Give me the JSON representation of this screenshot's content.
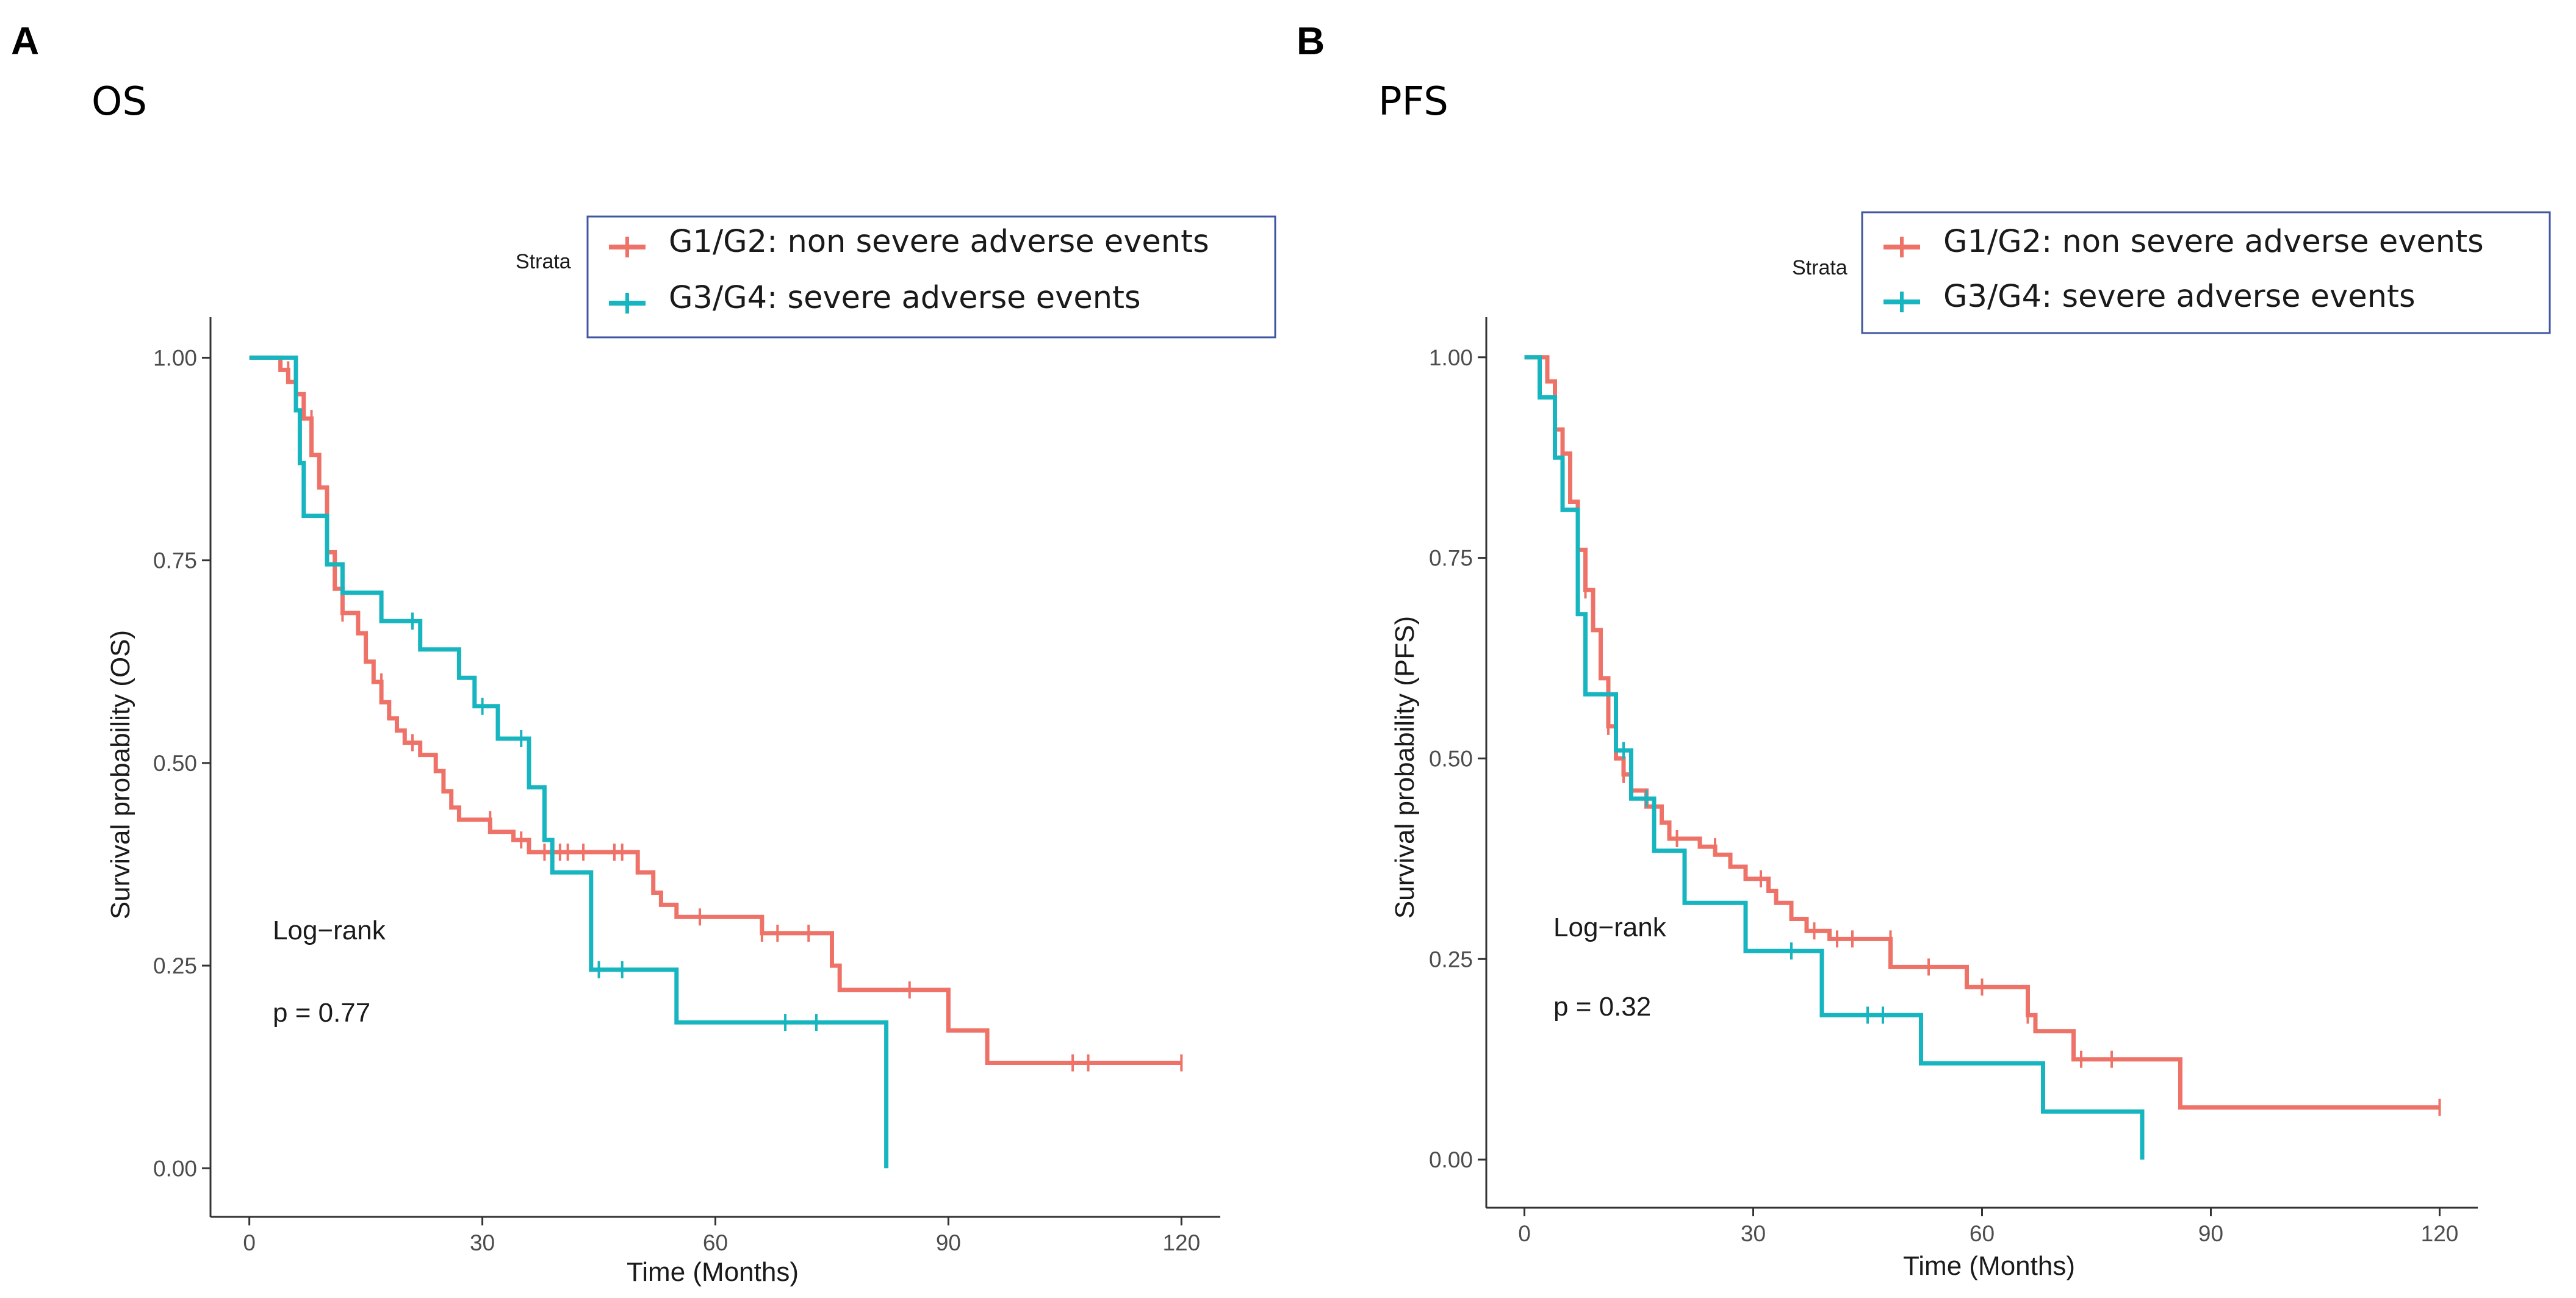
{
  "colors": {
    "group1": "#ee7267",
    "group2": "#17b5bf",
    "legend_border": "#3f57a0",
    "axis": "#333333"
  },
  "chart_data": [
    {
      "type": "line",
      "panel_label": "A",
      "subtitle": "OS",
      "xlabel": "Time (Months)",
      "ylabel": "Survival probability (OS)",
      "xlim": [
        -5,
        125
      ],
      "ylim": [
        -0.06,
        1.05
      ],
      "xticks": [
        0,
        30,
        60,
        90,
        120
      ],
      "xtick_labels": [
        "0",
        "30",
        "60",
        "90",
        "120"
      ],
      "yticks": [
        0,
        0.25,
        0.5,
        0.75,
        1.0
      ],
      "ytick_labels": [
        "0.00",
        "0.25",
        "0.50",
        "0.75",
        "1.00"
      ],
      "legend_title": "Strata",
      "legend_position": "top-right",
      "annotations": [
        "Log−rank",
        "p = 0.77"
      ],
      "series": [
        {
          "name": "G1/G2: non severe adverse events",
          "steps": [
            [
              0,
              1.0
            ],
            [
              4,
              1.0
            ],
            [
              4,
              0.985
            ],
            [
              5,
              0.985
            ],
            [
              5,
              0.97
            ],
            [
              6,
              0.97
            ],
            [
              6,
              0.955
            ],
            [
              7,
              0.955
            ],
            [
              7,
              0.925
            ],
            [
              8,
              0.925
            ],
            [
              8,
              0.88
            ],
            [
              9,
              0.88
            ],
            [
              9,
              0.84
            ],
            [
              10,
              0.84
            ],
            [
              10,
              0.76
            ],
            [
              11,
              0.76
            ],
            [
              11,
              0.715
            ],
            [
              12,
              0.715
            ],
            [
              12,
              0.685
            ],
            [
              14,
              0.685
            ],
            [
              14,
              0.66
            ],
            [
              15,
              0.66
            ],
            [
              15,
              0.625
            ],
            [
              16,
              0.625
            ],
            [
              16,
              0.6
            ],
            [
              17,
              0.6
            ],
            [
              17,
              0.575
            ],
            [
              18,
              0.575
            ],
            [
              18,
              0.555
            ],
            [
              19,
              0.555
            ],
            [
              19,
              0.54
            ],
            [
              20,
              0.54
            ],
            [
              20,
              0.525
            ],
            [
              22,
              0.525
            ],
            [
              22,
              0.51
            ],
            [
              24,
              0.51
            ],
            [
              24,
              0.49
            ],
            [
              25,
              0.49
            ],
            [
              25,
              0.465
            ],
            [
              26,
              0.465
            ],
            [
              26,
              0.445
            ],
            [
              27,
              0.445
            ],
            [
              27,
              0.43
            ],
            [
              31,
              0.43
            ],
            [
              31,
              0.415
            ],
            [
              34,
              0.415
            ],
            [
              34,
              0.405
            ],
            [
              36,
              0.405
            ],
            [
              36,
              0.39
            ],
            [
              50,
              0.39
            ],
            [
              50,
              0.365
            ],
            [
              52,
              0.365
            ],
            [
              52,
              0.34
            ],
            [
              53,
              0.34
            ],
            [
              53,
              0.325
            ],
            [
              55,
              0.325
            ],
            [
              55,
              0.31
            ],
            [
              66,
              0.31
            ],
            [
              66,
              0.29
            ],
            [
              75,
              0.29
            ],
            [
              75,
              0.25
            ],
            [
              76,
              0.25
            ],
            [
              76,
              0.22
            ],
            [
              90,
              0.22
            ],
            [
              90,
              0.17
            ],
            [
              95,
              0.17
            ],
            [
              95,
              0.13
            ],
            [
              120,
              0.13
            ]
          ],
          "censors": [
            [
              5,
              0.985
            ],
            [
              8,
              0.925
            ],
            [
              10,
              0.76
            ],
            [
              12,
              0.685
            ],
            [
              17,
              0.6
            ],
            [
              21,
              0.525
            ],
            [
              31,
              0.43
            ],
            [
              35,
              0.405
            ],
            [
              38,
              0.39
            ],
            [
              40,
              0.39
            ],
            [
              41,
              0.39
            ],
            [
              43,
              0.39
            ],
            [
              47,
              0.39
            ],
            [
              48,
              0.39
            ],
            [
              58,
              0.31
            ],
            [
              66,
              0.29
            ],
            [
              68,
              0.29
            ],
            [
              72,
              0.29
            ],
            [
              85,
              0.22
            ],
            [
              106,
              0.13
            ],
            [
              108,
              0.13
            ],
            [
              120,
              0.13
            ]
          ]
        },
        {
          "name": "G3/G4: severe adverse events",
          "steps": [
            [
              0,
              1.0
            ],
            [
              6,
              1.0
            ],
            [
              6,
              0.935
            ],
            [
              6.5,
              0.935
            ],
            [
              6.5,
              0.87
            ],
            [
              7,
              0.87
            ],
            [
              7,
              0.805
            ],
            [
              10,
              0.805
            ],
            [
              10,
              0.745
            ],
            [
              12,
              0.745
            ],
            [
              12,
              0.71
            ],
            [
              17,
              0.71
            ],
            [
              17,
              0.675
            ],
            [
              22,
              0.675
            ],
            [
              22,
              0.64
            ],
            [
              27,
              0.64
            ],
            [
              27,
              0.605
            ],
            [
              29,
              0.605
            ],
            [
              29,
              0.57
            ],
            [
              32,
              0.57
            ],
            [
              32,
              0.53
            ],
            [
              36,
              0.53
            ],
            [
              36,
              0.47
            ],
            [
              38,
              0.47
            ],
            [
              38,
              0.405
            ],
            [
              39,
              0.405
            ],
            [
              39,
              0.365
            ],
            [
              44,
              0.365
            ],
            [
              44,
              0.245
            ],
            [
              55,
              0.245
            ],
            [
              55,
              0.18
            ],
            [
              82,
              0.18
            ],
            [
              82,
              0.0
            ]
          ],
          "censors": [
            [
              21,
              0.675
            ],
            [
              30,
              0.57
            ],
            [
              35,
              0.53
            ],
            [
              45,
              0.245
            ],
            [
              48,
              0.245
            ],
            [
              69,
              0.18
            ],
            [
              73,
              0.18
            ]
          ]
        }
      ]
    },
    {
      "type": "line",
      "panel_label": "B",
      "subtitle": "PFS",
      "xlabel": "Time (Months)",
      "ylabel": "Survival probability (PFS)",
      "xlim": [
        -5,
        125
      ],
      "ylim": [
        -0.06,
        1.05
      ],
      "xticks": [
        0,
        30,
        60,
        90,
        120
      ],
      "xtick_labels": [
        "0",
        "30",
        "60",
        "90",
        "120"
      ],
      "yticks": [
        0,
        0.25,
        0.5,
        0.75,
        1.0
      ],
      "ytick_labels": [
        "0.00",
        "0.25",
        "0.50",
        "0.75",
        "1.00"
      ],
      "legend_title": "Strata",
      "legend_position": "top-right",
      "annotations": [
        "Log−rank",
        "p = 0.32"
      ],
      "series": [
        {
          "name": "G1/G2: non severe adverse events",
          "steps": [
            [
              0,
              1.0
            ],
            [
              3,
              1.0
            ],
            [
              3,
              0.97
            ],
            [
              4,
              0.97
            ],
            [
              4,
              0.91
            ],
            [
              5,
              0.91
            ],
            [
              5,
              0.88
            ],
            [
              6,
              0.88
            ],
            [
              6,
              0.82
            ],
            [
              7,
              0.82
            ],
            [
              7,
              0.76
            ],
            [
              8,
              0.76
            ],
            [
              8,
              0.71
            ],
            [
              9,
              0.71
            ],
            [
              9,
              0.66
            ],
            [
              10,
              0.66
            ],
            [
              10,
              0.6
            ],
            [
              11,
              0.6
            ],
            [
              11,
              0.54
            ],
            [
              12,
              0.54
            ],
            [
              12,
              0.5
            ],
            [
              13,
              0.5
            ],
            [
              13,
              0.48
            ],
            [
              14,
              0.48
            ],
            [
              14,
              0.46
            ],
            [
              16,
              0.46
            ],
            [
              16,
              0.44
            ],
            [
              18,
              0.44
            ],
            [
              18,
              0.42
            ],
            [
              19,
              0.42
            ],
            [
              19,
              0.4
            ],
            [
              23,
              0.4
            ],
            [
              23,
              0.39
            ],
            [
              25,
              0.39
            ],
            [
              25,
              0.38
            ],
            [
              27,
              0.38
            ],
            [
              27,
              0.365
            ],
            [
              29,
              0.365
            ],
            [
              29,
              0.35
            ],
            [
              32,
              0.35
            ],
            [
              32,
              0.335
            ],
            [
              33,
              0.335
            ],
            [
              33,
              0.32
            ],
            [
              35,
              0.32
            ],
            [
              35,
              0.3
            ],
            [
              37,
              0.3
            ],
            [
              37,
              0.285
            ],
            [
              40,
              0.285
            ],
            [
              40,
              0.275
            ],
            [
              48,
              0.275
            ],
            [
              48,
              0.24
            ],
            [
              58,
              0.24
            ],
            [
              58,
              0.215
            ],
            [
              66,
              0.215
            ],
            [
              66,
              0.18
            ],
            [
              67,
              0.18
            ],
            [
              67,
              0.16
            ],
            [
              72,
              0.16
            ],
            [
              72,
              0.125
            ],
            [
              86,
              0.125
            ],
            [
              86,
              0.065
            ],
            [
              120,
              0.065
            ]
          ],
          "censors": [
            [
              8,
              0.71
            ],
            [
              11,
              0.54
            ],
            [
              13,
              0.48
            ],
            [
              17,
              0.44
            ],
            [
              20,
              0.4
            ],
            [
              25,
              0.39
            ],
            [
              31,
              0.35
            ],
            [
              38,
              0.285
            ],
            [
              41,
              0.275
            ],
            [
              43,
              0.275
            ],
            [
              48,
              0.275
            ],
            [
              53,
              0.24
            ],
            [
              60,
              0.215
            ],
            [
              66,
              0.18
            ],
            [
              73,
              0.125
            ],
            [
              77,
              0.125
            ],
            [
              120,
              0.065
            ]
          ]
        },
        {
          "name": "G3/G4: severe adverse events",
          "steps": [
            [
              0,
              1.0
            ],
            [
              2,
              1.0
            ],
            [
              2,
              0.95
            ],
            [
              4,
              0.95
            ],
            [
              4,
              0.875
            ],
            [
              5,
              0.875
            ],
            [
              5,
              0.81
            ],
            [
              7,
              0.81
            ],
            [
              7,
              0.68
            ],
            [
              8,
              0.68
            ],
            [
              8,
              0.58
            ],
            [
              12,
              0.58
            ],
            [
              12,
              0.51
            ],
            [
              14,
              0.51
            ],
            [
              14,
              0.45
            ],
            [
              17,
              0.45
            ],
            [
              17,
              0.385
            ],
            [
              21,
              0.385
            ],
            [
              21,
              0.32
            ],
            [
              29,
              0.32
            ],
            [
              29,
              0.26
            ],
            [
              39,
              0.26
            ],
            [
              39,
              0.18
            ],
            [
              52,
              0.18
            ],
            [
              52,
              0.12
            ],
            [
              68,
              0.12
            ],
            [
              68,
              0.06
            ],
            [
              81,
              0.06
            ],
            [
              81,
              0.0
            ]
          ],
          "censors": [
            [
              13,
              0.51
            ],
            [
              16,
              0.45
            ],
            [
              35,
              0.26
            ],
            [
              45,
              0.18
            ],
            [
              47,
              0.18
            ]
          ]
        }
      ]
    }
  ]
}
